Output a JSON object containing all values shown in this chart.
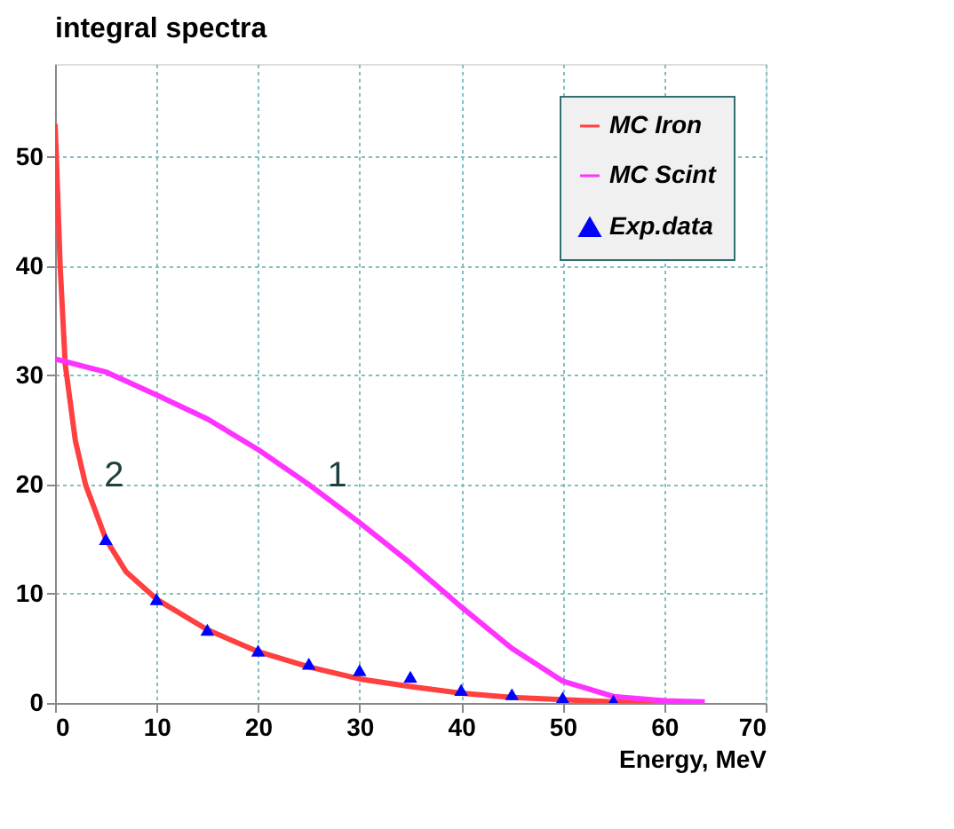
{
  "chart_data": {
    "type": "line",
    "title": "integral spectra",
    "xlabel": "Energy, MeV",
    "xlim": [
      0,
      70
    ],
    "xticks": [
      0,
      10,
      20,
      30,
      40,
      50,
      60,
      70
    ],
    "ylim": [
      0,
      58.5
    ],
    "yticks": [
      0,
      10,
      20,
      30,
      40,
      50
    ],
    "grid": true,
    "legend": "top right",
    "series": [
      {
        "name": "MC Iron",
        "color": "#ff4040",
        "x": [
          0,
          0.2,
          0.5,
          1,
          2,
          3,
          5,
          7,
          10,
          15,
          20,
          25,
          30,
          35,
          40,
          45,
          50,
          55,
          60
        ],
        "values": [
          53,
          48,
          40,
          31,
          24,
          20,
          15,
          12,
          9.5,
          6.7,
          4.7,
          3.3,
          2.2,
          1.5,
          0.9,
          0.5,
          0.3,
          0.1,
          0
        ]
      },
      {
        "name": "MC Scint",
        "color": "#ff33ff",
        "x": [
          0,
          5,
          10,
          15,
          20,
          25,
          30,
          35,
          40,
          45,
          50,
          55,
          60,
          64
        ],
        "values": [
          31.5,
          30.3,
          28.2,
          26,
          23.2,
          20,
          16.5,
          12.8,
          8.8,
          5,
          2,
          0.6,
          0.2,
          0.1
        ]
      },
      {
        "name": "Exp.data",
        "color": "#0000ff",
        "type": "scatter",
        "marker": "triangle",
        "x": [
          5,
          10,
          15,
          20,
          25,
          30,
          35,
          40,
          45,
          50,
          55
        ],
        "values": [
          15,
          9.5,
          6.7,
          4.8,
          3.6,
          3,
          2.4,
          1.2,
          0.8,
          0.5,
          0.2
        ]
      }
    ],
    "annotations": [
      {
        "text": "1",
        "x": 25,
        "y": 20
      },
      {
        "text": "2",
        "x": 3,
        "y": 20
      }
    ]
  }
}
